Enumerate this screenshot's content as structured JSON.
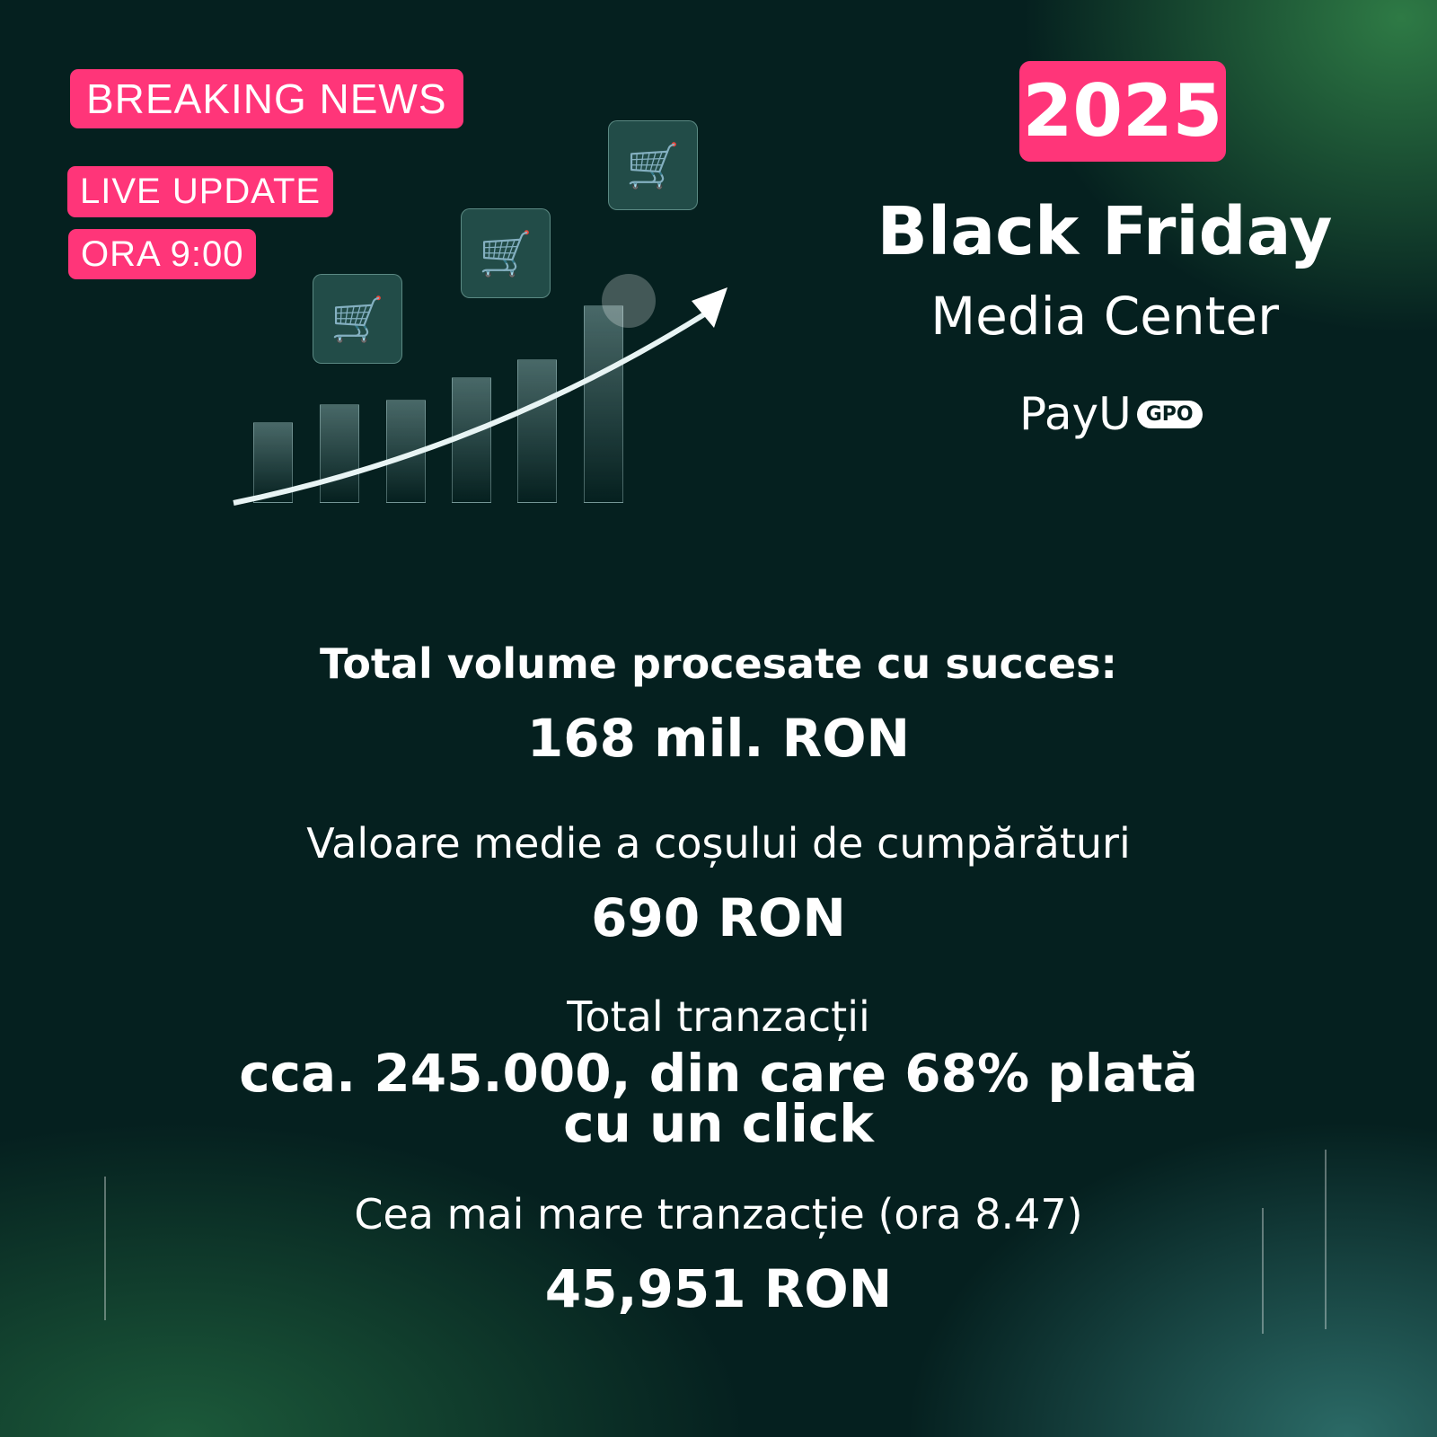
{
  "badges": {
    "breaking": "BREAKING NEWS",
    "live": "LIVE UPDATE",
    "time": "ORA 9:00"
  },
  "header": {
    "year": "2025",
    "title": "Black Friday",
    "subtitle": "Media Center"
  },
  "logo": {
    "text": "PayU",
    "badge": "GPO"
  },
  "colors": {
    "accent": "#ff3579",
    "background": "#05201f"
  },
  "icons": [
    "shopping-cart-icon",
    "growth-arrow-icon",
    "up-arrow-icon"
  ],
  "stats": [
    {
      "label": "Total volume procesate cu succes:",
      "value": "168 mil. RON"
    },
    {
      "label": "Valoare medie a coșului de cumpărături",
      "value": "690 RON"
    },
    {
      "label": "Total tranzacții",
      "value": "cca. 245.000, din care 68% plată cu un click"
    },
    {
      "label": "Cea mai mare tranzacție (ora 8.47)",
      "value": "45,951 RON"
    }
  ]
}
